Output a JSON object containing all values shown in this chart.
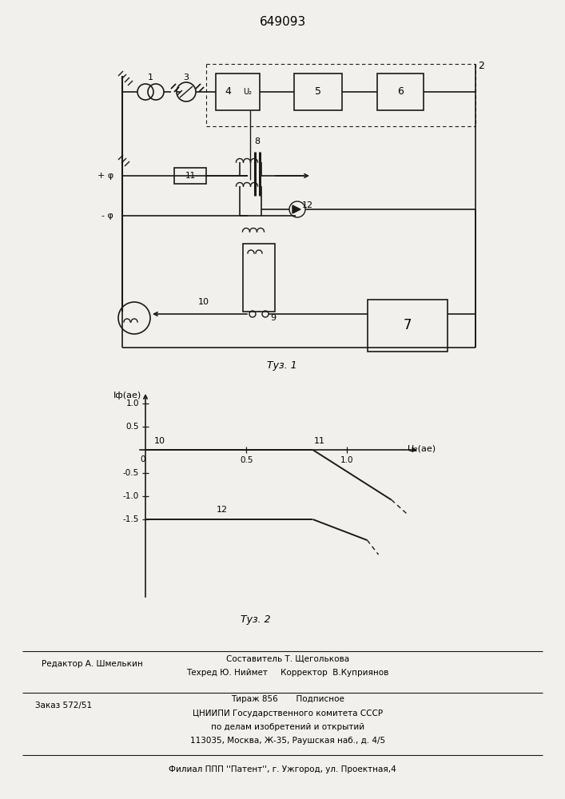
{
  "patent_number": "649093",
  "background_color": "#f2f0ec",
  "line_color": "#1a1a1a",
  "fig1_caption": "Τуз. 1",
  "fig2_caption": "Τуз. 2",
  "ylabel_fig2": "Iф(ае)",
  "xlabel_fig2": "U₂(ае)",
  "plus_phi": "+ φ",
  "minus_phi": "- φ",
  "U2_label": "U₂",
  "footer_editor": "Редактор А. Шмелькин",
  "footer_composer": "Составитель Т. Щеголькова",
  "footer_techred": "Техред Ю. Ниймет",
  "footer_corrector": "Корректор  В.Куприянов",
  "footer_order": "Заказ 572/51",
  "footer_tirazh": "Тираж 856",
  "footer_podpisnoe": "Подписное",
  "footer_org1": "ЦНИИПИ Государственного комитета СССР",
  "footer_org2": "по делам изобретений и открытий",
  "footer_addr": "113035, Москва, Ж-35, Раушская наб., д. 4/5",
  "footer_filial": "Филиал ППП ''Патент'', г. Ужгород, ул. Проектная,4"
}
